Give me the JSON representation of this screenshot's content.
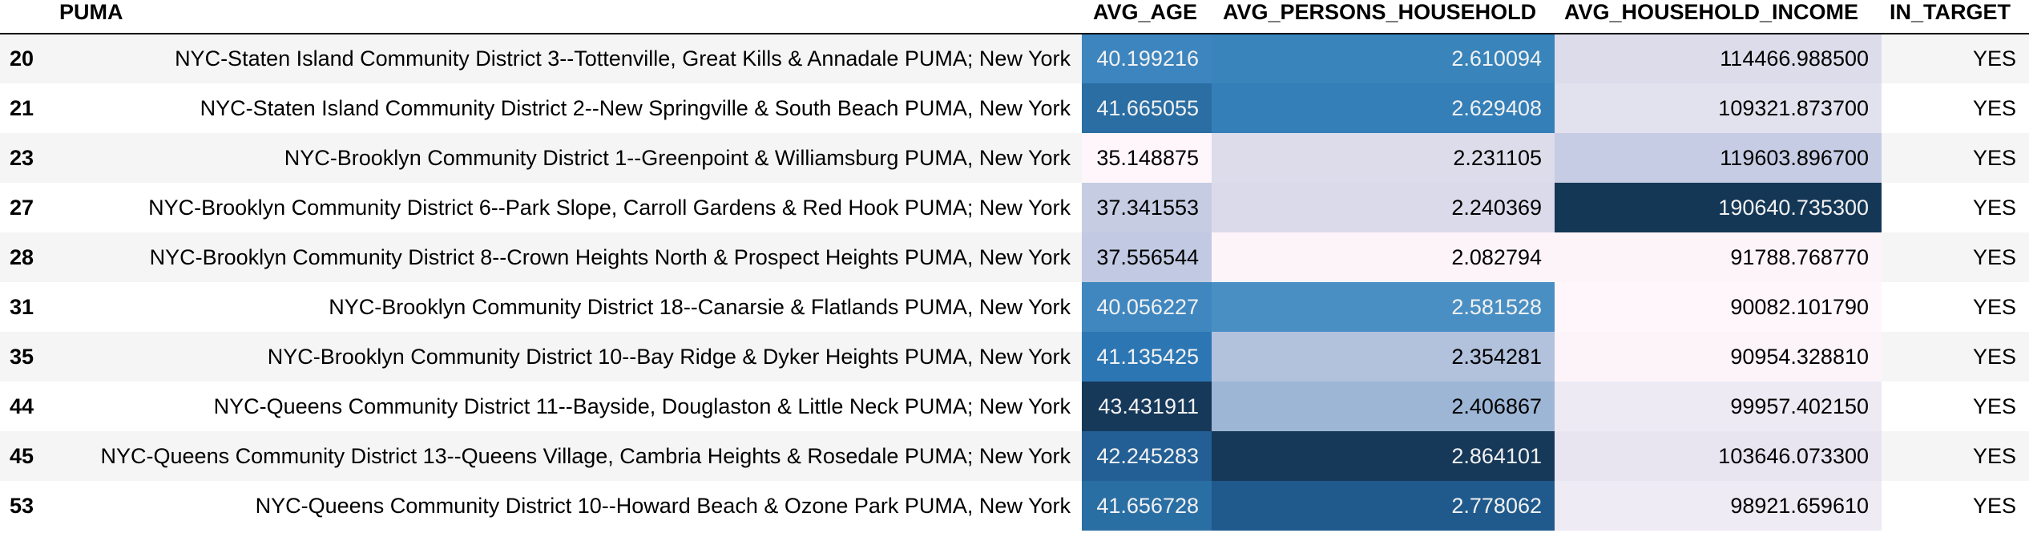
{
  "table": {
    "headers": {
      "index": "",
      "puma": "PUMA",
      "avg_age": "AVG_AGE",
      "avg_persons_household": "AVG_PERSONS_HOUSEHOLD",
      "avg_household_income": "AVG_HOUSEHOLD_INCOME",
      "in_target": "IN_TARGET"
    },
    "rows": [
      {
        "index": "20",
        "puma": "NYC-Staten Island Community District 3--Tottenville, Great Kills & Annadale PUMA; New York",
        "avg_age": "40.199216",
        "avg_persons_household": "2.610094",
        "avg_household_income": "114466.988500",
        "in_target": "YES",
        "colors": {
          "age": "#3d85be",
          "pers": "#3884bb",
          "inc": "#dcdcea"
        },
        "text_colors": {
          "age": "#f1f1f1",
          "pers": "#f1f1f1",
          "inc": "#000000"
        }
      },
      {
        "index": "21",
        "puma": "NYC-Staten Island Community District 2--New Springville & South Beach PUMA, New York",
        "avg_age": "41.665055",
        "avg_persons_household": "2.629408",
        "avg_household_income": "109321.873700",
        "in_target": "YES",
        "colors": {
          "age": "#2a6ea3",
          "pers": "#347fb8",
          "inc": "#e2e2ee"
        },
        "text_colors": {
          "age": "#f1f1f1",
          "pers": "#f1f1f1",
          "inc": "#000000"
        }
      },
      {
        "index": "23",
        "puma": "NYC-Brooklyn Community District 1--Greenpoint & Williamsburg PUMA, New York",
        "avg_age": "35.148875",
        "avg_persons_household": "2.231105",
        "avg_household_income": "119603.896700",
        "in_target": "YES",
        "colors": {
          "age": "#fff6fb",
          "pers": "#dcdcea",
          "inc": "#c6cce3"
        },
        "text_colors": {
          "age": "#000000",
          "pers": "#000000",
          "inc": "#000000"
        }
      },
      {
        "index": "27",
        "puma": "NYC-Brooklyn Community District 6--Park Slope, Carroll Gardens & Red Hook PUMA; New York",
        "avg_age": "37.341553",
        "avg_persons_household": "2.240369",
        "avg_household_income": "190640.735300",
        "in_target": "YES",
        "colors": {
          "age": "#c6cde3",
          "pers": "#dadaea",
          "inc": "#153756"
        },
        "text_colors": {
          "age": "#000000",
          "pers": "#000000",
          "inc": "#f1f1f1"
        }
      },
      {
        "index": "28",
        "puma": "NYC-Brooklyn Community District 8--Crown Heights North & Prospect Heights PUMA, New York",
        "avg_age": "37.556544",
        "avg_persons_household": "2.082794",
        "avg_household_income": "91788.768770",
        "in_target": "YES",
        "colors": {
          "age": "#c1cae2",
          "pers": "#fdf4f9",
          "inc": "#fdf4f9"
        },
        "text_colors": {
          "age": "#000000",
          "pers": "#000000",
          "inc": "#000000"
        }
      },
      {
        "index": "31",
        "puma": "NYC-Brooklyn Community District 18--Canarsie & Flatlands PUMA, New York",
        "avg_age": "40.056227",
        "avg_persons_household": "2.581528",
        "avg_household_income": "90082.101790",
        "in_target": "YES",
        "colors": {
          "age": "#4087c0",
          "pers": "#4a8fc3",
          "inc": "#fff6fb"
        },
        "text_colors": {
          "age": "#f1f1f1",
          "pers": "#f1f1f1",
          "inc": "#000000"
        }
      },
      {
        "index": "35",
        "puma": "NYC-Brooklyn Community District 10--Bay Ridge & Dyker Heights PUMA, New York",
        "avg_age": "41.135425",
        "avg_persons_household": "2.354281",
        "avg_household_income": "90954.328810",
        "in_target": "YES",
        "colors": {
          "age": "#2c77b3",
          "pers": "#b2c1dc",
          "inc": "#fcf4f9"
        },
        "text_colors": {
          "age": "#f1f1f1",
          "pers": "#000000",
          "inc": "#000000"
        }
      },
      {
        "index": "44",
        "puma": "NYC-Queens Community District 11--Bayside, Douglaston & Little Neck PUMA; New York",
        "avg_age": "43.431911",
        "avg_persons_household": "2.406867",
        "avg_household_income": "99957.402150",
        "in_target": "YES",
        "colors": {
          "age": "#163859",
          "pers": "#9db6d6",
          "inc": "#eeeaf4"
        },
        "text_colors": {
          "age": "#f1f1f1",
          "pers": "#000000",
          "inc": "#000000"
        }
      },
      {
        "index": "45",
        "puma": "NYC-Queens Community District 13--Queens Village, Cambria Heights & Rosedale PUMA; New York",
        "avg_age": "42.245283",
        "avg_persons_household": "2.864101",
        "avg_household_income": "103646.073300",
        "in_target": "YES",
        "colors": {
          "age": "#235f95",
          "pers": "#163859",
          "inc": "#e8e5f1"
        },
        "text_colors": {
          "age": "#f1f1f1",
          "pers": "#f1f1f1",
          "inc": "#000000"
        }
      },
      {
        "index": "53",
        "puma": "NYC-Queens Community District 10--Howard Beach & Ozone Park PUMA, New York",
        "avg_age": "41.656728",
        "avg_persons_household": "2.778062",
        "avg_household_income": "98921.659610",
        "in_target": "YES",
        "colors": {
          "age": "#2a6fa4",
          "pers": "#205a8c",
          "inc": "#eeebf4"
        },
        "text_colors": {
          "age": "#f1f1f1",
          "pers": "#f1f1f1",
          "inc": "#000000"
        }
      }
    ]
  }
}
